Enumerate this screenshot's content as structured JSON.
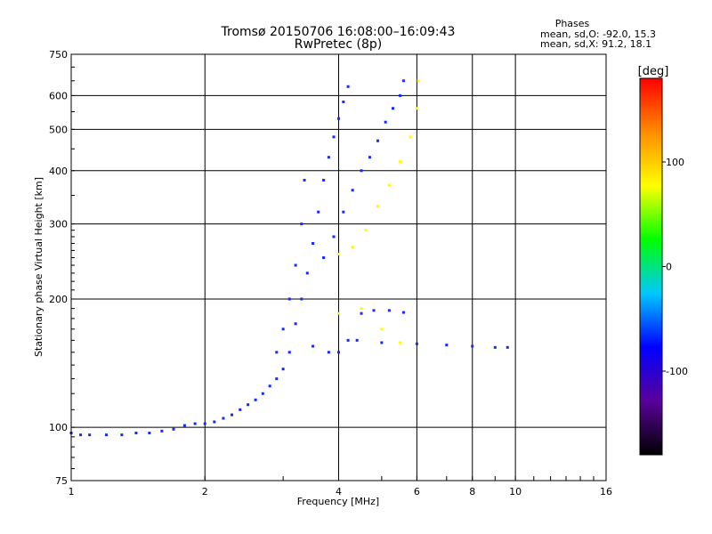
{
  "chart_data": {
    "type": "scatter",
    "title": "Tromsø 20150706 16:08:00–16:09:43",
    "subtitle": "RwPretec (8p)",
    "xlabel": "Frequency [MHz]",
    "ylabel": "Stationary phase Virtual Height [km]",
    "x_scale": "log",
    "y_scale": "log",
    "xlim": [
      1,
      16
    ],
    "ylim": [
      75,
      750
    ],
    "x_ticks": [
      1,
      2,
      4,
      6,
      8,
      10,
      16
    ],
    "x_tick_labels": [
      "1",
      "2",
      "4",
      "6",
      "8",
      "10",
      "16"
    ],
    "y_ticks": [
      75,
      100,
      200,
      300,
      400,
      500,
      600,
      750
    ],
    "y_tick_labels": [
      "75",
      "100",
      "200",
      "300",
      "400",
      "500",
      "600",
      "750"
    ],
    "grid": true,
    "phase_stats": {
      "heading": "Phases",
      "line_o": "mean, sd,O:  -92.0,  15.3",
      "line_x": "mean, sd,X:   91.2,  18.1"
    },
    "colorbar": {
      "label": "[deg]",
      "range": [
        -180,
        180
      ],
      "ticks": [
        100,
        0,
        -100
      ],
      "tick_labels": [
        "100",
        "0",
        "-100"
      ],
      "colormap": [
        "#000000",
        "#5a009a",
        "#0000ff",
        "#00c8ff",
        "#00ff00",
        "#ffff00",
        "#ff8c00",
        "#ff0000"
      ]
    },
    "traces": [
      {
        "phase": -100,
        "points": [
          [
            1.0,
            97
          ],
          [
            1.05,
            96
          ],
          [
            1.1,
            96
          ],
          [
            1.2,
            96
          ],
          [
            1.3,
            96
          ],
          [
            1.4,
            97
          ],
          [
            1.5,
            97
          ],
          [
            1.6,
            98
          ],
          [
            1.7,
            99
          ],
          [
            1.8,
            101
          ],
          [
            1.9,
            102
          ],
          [
            2.0,
            102
          ],
          [
            2.1,
            103
          ],
          [
            2.2,
            105
          ],
          [
            2.3,
            107
          ],
          [
            2.4,
            110
          ],
          [
            2.5,
            113
          ],
          [
            2.6,
            116
          ],
          [
            2.7,
            120
          ],
          [
            2.8,
            125
          ],
          [
            2.9,
            130
          ],
          [
            3.0,
            137
          ],
          [
            3.1,
            150
          ],
          [
            3.2,
            175
          ],
          [
            3.3,
            200
          ],
          [
            3.4,
            230
          ],
          [
            3.5,
            270
          ],
          [
            3.6,
            320
          ],
          [
            3.7,
            380
          ],
          [
            3.8,
            430
          ],
          [
            3.9,
            480
          ],
          [
            4.0,
            530
          ],
          [
            4.1,
            580
          ],
          [
            4.2,
            630
          ]
        ]
      },
      {
        "phase": -100,
        "points": [
          [
            2.9,
            150
          ],
          [
            3.0,
            170
          ],
          [
            3.1,
            200
          ],
          [
            3.2,
            240
          ],
          [
            3.3,
            300
          ],
          [
            3.35,
            380
          ]
        ]
      },
      {
        "phase": -100,
        "points": [
          [
            3.5,
            155
          ],
          [
            3.8,
            150
          ],
          [
            4.0,
            150
          ],
          [
            4.2,
            160
          ],
          [
            4.5,
            185
          ],
          [
            4.8,
            188
          ],
          [
            5.2,
            188
          ],
          [
            5.6,
            186
          ]
        ]
      },
      {
        "phase": -100,
        "points": [
          [
            4.4,
            160
          ],
          [
            5.0,
            158
          ],
          [
            6.0,
            157
          ],
          [
            7.0,
            156
          ],
          [
            8.0,
            155
          ],
          [
            9.0,
            154
          ],
          [
            9.6,
            154
          ]
        ]
      },
      {
        "phase": -100,
        "points": [
          [
            3.7,
            250
          ],
          [
            3.9,
            280
          ],
          [
            4.1,
            320
          ],
          [
            4.3,
            360
          ],
          [
            4.5,
            400
          ],
          [
            4.7,
            430
          ],
          [
            4.9,
            470
          ],
          [
            5.1,
            520
          ],
          [
            5.3,
            560
          ],
          [
            5.5,
            600
          ],
          [
            5.6,
            650
          ]
        ]
      },
      {
        "phase": 100,
        "points": [
          [
            4.0,
            255
          ],
          [
            4.3,
            265
          ],
          [
            4.6,
            290
          ],
          [
            4.9,
            330
          ],
          [
            5.2,
            370
          ],
          [
            5.5,
            420
          ],
          [
            5.8,
            480
          ],
          [
            6.0,
            560
          ],
          [
            6.05,
            650
          ]
        ]
      },
      {
        "phase": 100,
        "points": [
          [
            4.0,
            185
          ],
          [
            4.5,
            190
          ],
          [
            5.0,
            170
          ],
          [
            5.5,
            158
          ]
        ]
      }
    ]
  }
}
